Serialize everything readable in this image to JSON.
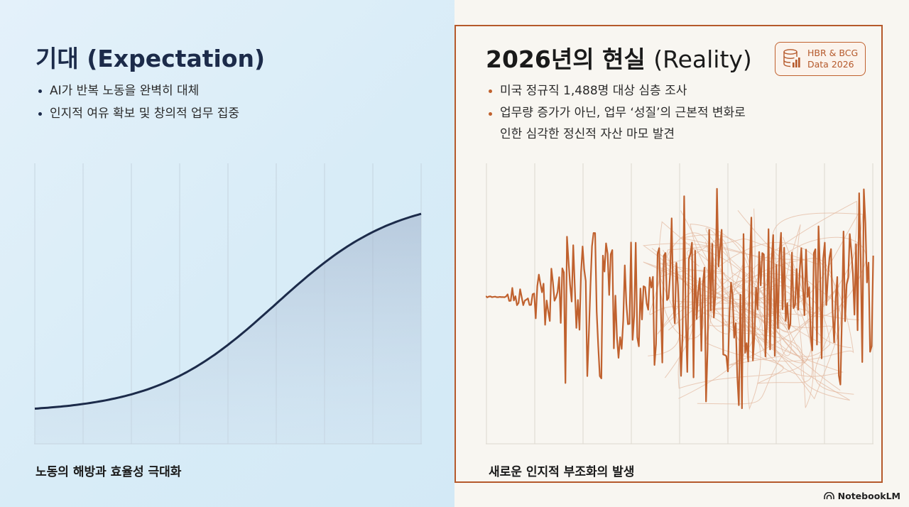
{
  "left": {
    "title": "기대 (Expectation)",
    "bullets": [
      "AI가 반복 노동을 완벽히 대체",
      "인지적 여유 확보 및 창의적 업무 집중"
    ],
    "caption": "노동의 해방과 효율성 극대화"
  },
  "right": {
    "title_bold": "2026년의 현실",
    "title_normal": "(Reality)",
    "badge_line1": "HBR & BCG",
    "badge_line2": "Data 2026",
    "bullets": [
      "미국 정규직 1,488명 대상 심층 조사",
      "업무량 증가가 아닌, 업무 ‘성질’의 근본적 변화로\n인한 심각한 정신적 자산 마모 발견"
    ],
    "caption": "새로운 인지적 부조화의 발생"
  },
  "brand": {
    "name": "NotebookLM"
  },
  "colors": {
    "navy": "#1c2b4a",
    "accent": "#c0612e",
    "left_bg": "#dcedf8",
    "right_bg": "#f8f6f1"
  },
  "icons": [
    "database-chart-icon",
    "notebooklm-logo-icon"
  ]
}
